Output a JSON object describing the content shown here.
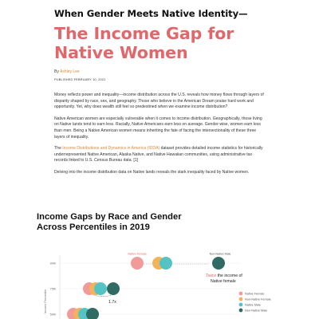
{
  "article": {
    "kicker": "When Gender Meets Native Identity—",
    "headline_line1": "The Income Gap for",
    "headline_line2": "Native Women",
    "byline_prefix": "By",
    "author": "Ashley Lee",
    "published": "PUBLISHED FEBRUARY 10, 2021",
    "paragraph1": "Money reflects power and inequality—income distribution across the U.S. reveals how money flows through layers of disparity shaped by race, sex, and geography. Those who believe in the American Dream praise hard work and opportunity. Yet, why does wealth still feel so predestined when we examine income distribution?",
    "paragraph2": "Native American women are especially vulnerable when it comes to income distribution. Geographically, those living on Native lands tend to earn less. Racially, Native Americans earn less on average. Gender-wise, women earn less than men. Being a Native American women means inheriting the fate of facing the intersectionality of these three layers of inequality.",
    "paragraph3_before": "The ",
    "paragraph3_link": "Income Distributions and Dynamics in America (IDDA)",
    "paragraph3_after": " dataset provides detailed income statistics for historically underrepresented Native American, Alaska Native, and Native Hawaiian communities, using administrative tax records linked to U.S. Census Bureau data. [1]",
    "paragraph4": "Delving into the income distribution data on Native lands reveals the stark inequality faced by Native women."
  },
  "chart_title_line1": "Income Gaps by Race and Gender",
  "chart_title_line2": "Across Percentiles in 2019",
  "chart_data": {
    "type": "scatter",
    "title": "Income Gaps by Race and Gender Across Percentiles in 2019",
    "ylabel": "Income Percentile",
    "y_categories": [
      "90th",
      "75th",
      "50th"
    ],
    "legend": [
      {
        "name": "Native Female",
        "color": "#f09a9a"
      },
      {
        "name": "Non-Native Female",
        "color": "#f3b35c"
      },
      {
        "name": "Native Male",
        "color": "#55c3c3"
      },
      {
        "name": "Non-Native Male",
        "color": "#2f6b63"
      }
    ],
    "series_90th": [
      "Native Female",
      "Non-Native Female",
      "Native Male",
      "Non-Native Male"
    ],
    "series_75th": [
      "Native Female",
      "Non-Native Female",
      "Native Male",
      "Non-Native Male"
    ],
    "series_50th": [
      "Native Female",
      "Non-Native Female",
      "Native Male",
      "Non-Native Male"
    ],
    "annotations": {
      "native_female_label": "Native Female",
      "non_native_male_label": "Non-Native Male",
      "twice_word": "Twice",
      "twice_rest": " the income of",
      "twice_line2": "Native female",
      "ratio": "1.7x"
    },
    "legend_placement": "right"
  }
}
